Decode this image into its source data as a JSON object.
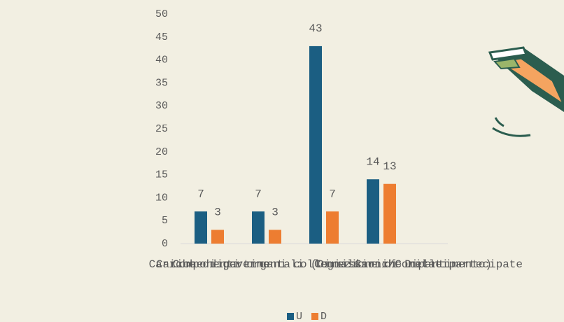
{
  "chart_data": {
    "type": "bar",
    "categories": [
      "Cariche di governo",
      "Componenti organi collegiali",
      "Cariche dipartimentali (Direzione di Dipartimento)",
      "Commissioni/Comitati",
      "Cariche nelle partecipate"
    ],
    "series": [
      {
        "name": "U",
        "color": "#1b5e82",
        "values": [
          7,
          7,
          43,
          14,
          null
        ]
      },
      {
        "name": "D",
        "color": "#ed7d31",
        "values": [
          3,
          3,
          7,
          13,
          null
        ]
      }
    ],
    "ylim": [
      0,
      50
    ],
    "yticks": [
      0,
      5,
      10,
      15,
      20,
      25,
      30,
      35,
      40,
      45,
      50
    ],
    "grid": false,
    "legend": "bottom"
  }
}
